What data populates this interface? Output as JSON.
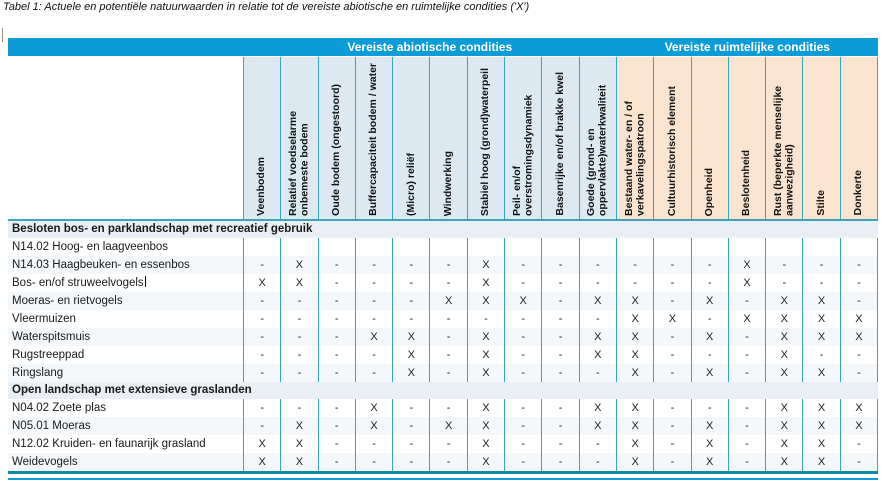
{
  "title": "Tabel 1: Actuele en potentiële natuurwaarden in relatie tot de vereiste abiotische en ruimtelijke condities ('X')",
  "header_groups": [
    {
      "label": "Vereiste abiotische condities",
      "columns": 10
    },
    {
      "label": "Vereiste ruimtelijke condities",
      "columns": 7
    }
  ],
  "columns": [
    "Veenbodem",
    "Relatief voedselarme onbemeste bodem",
    "Oude bodem (ongestoord)",
    "Buffercapaciteit bodem / water",
    "(Micro) reliëf",
    "Windwerking",
    "Stabiel hoog (grond)waterpeil",
    "Peil- en/of overstromingsdynamiek",
    "Basenrijke en/of brakke kwel",
    "Goede (grond- en oppervlakte)waterkwaliteit",
    "Bestaand water- en / of verkavelingspatroon",
    "Cultuurhistorisch element",
    "Openheid",
    "Beslotenheid",
    "Rust (beperkte menselijke aanwezigheid)",
    "Stilte",
    "Donkerte"
  ],
  "sections": [
    {
      "label": "Besloten bos- en parklandschap met recreatief gebruik",
      "rows": [
        {
          "label": "N14.02 Hoog- en laagveenbos",
          "values": [
            "",
            "",
            "",
            "",
            "",
            "",
            "",
            "",
            "",
            "",
            "",
            "",
            "",
            "",
            "",
            "",
            ""
          ]
        },
        {
          "label": "N14.03 Haagbeuken- en essenbos",
          "values": [
            "-",
            "X",
            "-",
            "-",
            "-",
            "-",
            "X",
            "-",
            "-",
            "-",
            "-",
            "-",
            "-",
            "X",
            "-",
            "-",
            "-"
          ]
        },
        {
          "label": "Bos- en/of struweelvogels",
          "caret": true,
          "values": [
            "X",
            "X",
            "-",
            "-",
            "-",
            "-",
            "X",
            "-",
            "-",
            "-",
            "-",
            "-",
            "-",
            "X",
            "-",
            "-",
            "-"
          ]
        },
        {
          "label": "Moeras- en rietvogels",
          "values": [
            "-",
            "-",
            "-",
            "-",
            "-",
            "X",
            "X",
            "X",
            "-",
            "X",
            "X",
            "-",
            "X",
            "-",
            "X",
            "X",
            "-"
          ]
        },
        {
          "label": "Vleermuizen",
          "values": [
            "-",
            "-",
            "-",
            "-",
            "-",
            "-",
            "-",
            "-",
            "-",
            "-",
            "X",
            "X",
            "-",
            "X",
            "X",
            "X",
            "X"
          ]
        },
        {
          "label": "Waterspitsmuis",
          "values": [
            "-",
            "-",
            "-",
            "X",
            "X",
            "-",
            "X",
            "-",
            "-",
            "X",
            "X",
            "-",
            "X",
            "-",
            "X",
            "X",
            "X"
          ]
        },
        {
          "label": "Rugstreeppad",
          "values": [
            "-",
            "-",
            "-",
            "-",
            "X",
            "-",
            "X",
            "-",
            "-",
            "X",
            "X",
            "-",
            "-",
            "-",
            "X",
            "-",
            "-"
          ]
        },
        {
          "label": "Ringslang",
          "values": [
            "-",
            "-",
            "-",
            "-",
            "X",
            "-",
            "X",
            "-",
            "-",
            "-",
            "X",
            "-",
            "X",
            "-",
            "X",
            "X",
            "-"
          ]
        }
      ]
    },
    {
      "label": "Open landschap met extensieve graslanden",
      "rows": [
        {
          "label": "N04.02 Zoete plas",
          "values": [
            "-",
            "-",
            "-",
            "X",
            "-",
            "-",
            "X",
            "-",
            "-",
            "X",
            "X",
            "-",
            "-",
            "-",
            "X",
            "X",
            "X"
          ]
        },
        {
          "label": "N05.01 Moeras",
          "values": [
            "-",
            "X",
            "-",
            "X",
            "-",
            "X",
            "X",
            "-",
            "-",
            "X",
            "X",
            "-",
            "X",
            "-",
            "X",
            "X",
            "X"
          ]
        },
        {
          "label": "N12.02 Kruiden- en faunarijk grasland",
          "values": [
            "X",
            "X",
            "-",
            "-",
            "-",
            "-",
            "X",
            "-",
            "-",
            "-",
            "X",
            "-",
            "X",
            "-",
            "X",
            "X",
            "-"
          ]
        },
        {
          "label": "Weidevogels",
          "values": [
            "X",
            "X",
            "-",
            "-",
            "-",
            "-",
            "X",
            "-",
            "-",
            "-",
            "X",
            "-",
            "X",
            "-",
            "X",
            "X",
            "-"
          ]
        }
      ]
    }
  ],
  "colors": {
    "bar": "#0d9cd8",
    "abio": "#dce9f1",
    "ruim": "#fae4d0",
    "line": "#3aa6ba",
    "heavy": "#0f8ba1",
    "section": "#e9eff4",
    "alt": "#f4f8fb"
  }
}
